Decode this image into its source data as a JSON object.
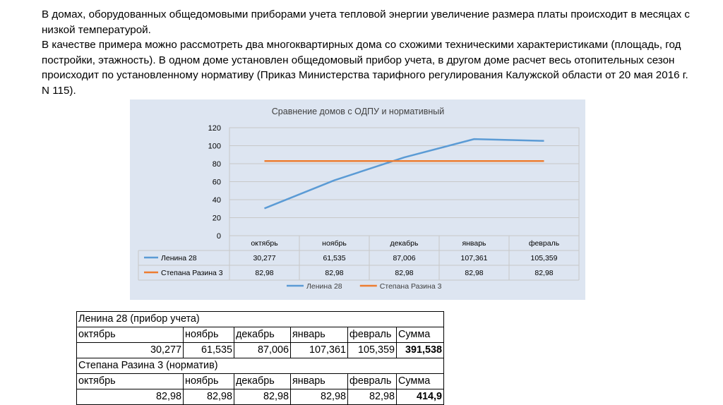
{
  "intro": {
    "paragraph1": "В домах, оборудованных общедомовыми приборами учета тепловой энергии  увеличение размера платы происходит в месяцах с низкой температурой.",
    "paragraph2": "В качестве примера можно рассмотреть два многоквартирных дома со схожими техническими характеристиками (площадь, год постройки, этажность). В одном доме установлен общедомовый прибор учета, в другом доме расчет весь отопительных сезон происходит по установленному нормативу (Приказ Министерства тарифного регулирования Калужской области  от 20 мая 2016 г. N 115)."
  },
  "chart_data": {
    "type": "line",
    "title": "Сравнение домов с ОДПУ и нормативный",
    "categories": [
      "октябрь",
      "ноябрь",
      "декабрь",
      "январь",
      "февраль"
    ],
    "yticks": [
      "0",
      "20",
      "40",
      "60",
      "80",
      "100",
      "120"
    ],
    "ylim": [
      0,
      120
    ],
    "grid": true,
    "legend_position": "bottom",
    "series": [
      {
        "name": "Ленина 28",
        "color": "#5b9bd5",
        "values": [
          30.277,
          61.535,
          87.006,
          107.361,
          105.359
        ],
        "labels": [
          "30,277",
          "61,535",
          "87,006",
          "107,361",
          "105,359"
        ]
      },
      {
        "name": "Степана Разина 3",
        "color": "#ed7d31",
        "values": [
          82.98,
          82.98,
          82.98,
          82.98,
          82.98
        ],
        "labels": [
          "82,98",
          "82,98",
          "82,98",
          "82,98",
          "82,98"
        ]
      }
    ]
  },
  "table": {
    "block1_title": "Ленина 28 (прибор учета)",
    "block2_title": "Степана Разина 3 (норматив)",
    "headers": [
      "октябрь",
      "ноябрь",
      "декабрь",
      "январь",
      "февраль",
      "Сумма"
    ],
    "row1": [
      "30,277",
      "61,535",
      "87,006",
      "107,361",
      "105,359",
      "391,538"
    ],
    "row2": [
      "82,98",
      "82,98",
      "82,98",
      "82,98",
      "82,98",
      "414,9"
    ]
  }
}
